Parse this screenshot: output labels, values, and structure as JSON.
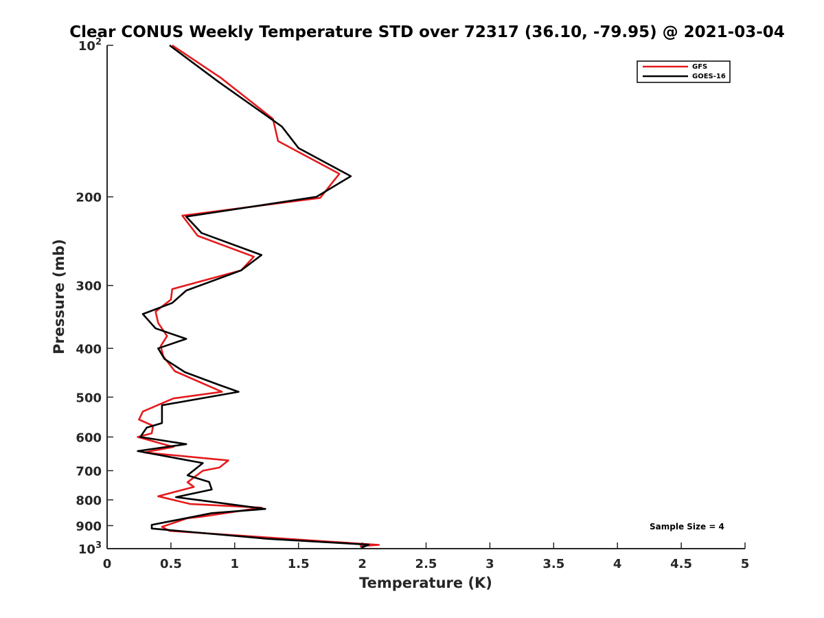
{
  "chart_data": {
    "type": "line",
    "title": "Clear CONUS Weekly Temperature STD over 72317 (36.10, -79.95) @ 2021-03-04",
    "xlabel": "Temperature (K)",
    "ylabel": "Pressure (mb)",
    "xlim": [
      0,
      5
    ],
    "ylim": [
      100,
      1000
    ],
    "y_scale": "log",
    "y_reversed": true,
    "grid": false,
    "legend_position": "top-right",
    "x_ticks": [
      "0",
      "0.5",
      "1",
      "1.5",
      "2",
      "2.5",
      "3",
      "3.5",
      "4",
      "4.5",
      "5"
    ],
    "y_ticks": [
      {
        "value": 100,
        "base": "10",
        "exp": "2"
      },
      {
        "value": 200,
        "label": "200"
      },
      {
        "value": 300,
        "label": "300"
      },
      {
        "value": 400,
        "label": "400"
      },
      {
        "value": 500,
        "label": "500"
      },
      {
        "value": 600,
        "label": "600"
      },
      {
        "value": 700,
        "label": "700"
      },
      {
        "value": 800,
        "label": "800"
      },
      {
        "value": 900,
        "label": "900"
      },
      {
        "value": 1000,
        "base": "10",
        "exp": "3"
      }
    ],
    "annotation": "Sample Size = 4",
    "series": [
      {
        "name": "GFS",
        "color": "#e41a1c",
        "points": [
          [
            0.51,
            100
          ],
          [
            0.89,
            116
          ],
          [
            1.3,
            140
          ],
          [
            1.34,
            155
          ],
          [
            1.82,
            180
          ],
          [
            1.67,
            201
          ],
          [
            0.59,
            218
          ],
          [
            0.71,
            239
          ],
          [
            1.15,
            263
          ],
          [
            1.05,
            280
          ],
          [
            0.51,
            305
          ],
          [
            0.5,
            320
          ],
          [
            0.38,
            338
          ],
          [
            0.4,
            356
          ],
          [
            0.47,
            378
          ],
          [
            0.42,
            396
          ],
          [
            0.44,
            415
          ],
          [
            0.53,
            444
          ],
          [
            0.9,
            488
          ],
          [
            0.52,
            503
          ],
          [
            0.28,
            534
          ],
          [
            0.25,
            554
          ],
          [
            0.36,
            570
          ],
          [
            0.35,
            590
          ],
          [
            0.24,
            600
          ],
          [
            0.52,
            628
          ],
          [
            0.29,
            644
          ],
          [
            0.95,
            668
          ],
          [
            0.88,
            690
          ],
          [
            0.75,
            700
          ],
          [
            0.63,
            738
          ],
          [
            0.68,
            754
          ],
          [
            0.4,
            787
          ],
          [
            0.65,
            815
          ],
          [
            1.21,
            829
          ],
          [
            0.74,
            864
          ],
          [
            0.63,
            870
          ],
          [
            0.43,
            905
          ],
          [
            0.49,
            922
          ],
          [
            1.68,
            966
          ],
          [
            2.13,
            983
          ],
          [
            1.98,
            989
          ]
        ]
      },
      {
        "name": "GOES-16",
        "color": "#000000",
        "points": [
          [
            0.49,
            100
          ],
          [
            0.87,
            118
          ],
          [
            1.37,
            145
          ],
          [
            1.5,
            160
          ],
          [
            1.91,
            182
          ],
          [
            1.64,
            200
          ],
          [
            0.62,
            219
          ],
          [
            0.74,
            236
          ],
          [
            1.21,
            261
          ],
          [
            1.05,
            280
          ],
          [
            0.62,
            307
          ],
          [
            0.51,
            325
          ],
          [
            0.28,
            342
          ],
          [
            0.38,
            365
          ],
          [
            0.62,
            383
          ],
          [
            0.4,
            400
          ],
          [
            0.45,
            420
          ],
          [
            0.61,
            446
          ],
          [
            0.87,
            472
          ],
          [
            1.03,
            488
          ],
          [
            0.43,
            519
          ],
          [
            0.43,
            563
          ],
          [
            0.31,
            575
          ],
          [
            0.26,
            600
          ],
          [
            0.62,
            620
          ],
          [
            0.24,
            640
          ],
          [
            0.75,
            676
          ],
          [
            0.63,
            715
          ],
          [
            0.8,
            737
          ],
          [
            0.82,
            763
          ],
          [
            0.54,
            790
          ],
          [
            0.74,
            802
          ],
          [
            1.24,
            834
          ],
          [
            0.82,
            850
          ],
          [
            0.35,
            897
          ],
          [
            0.35,
            912
          ],
          [
            1.26,
            956
          ],
          [
            2.05,
            982
          ],
          [
            1.99,
            997
          ]
        ]
      }
    ]
  }
}
